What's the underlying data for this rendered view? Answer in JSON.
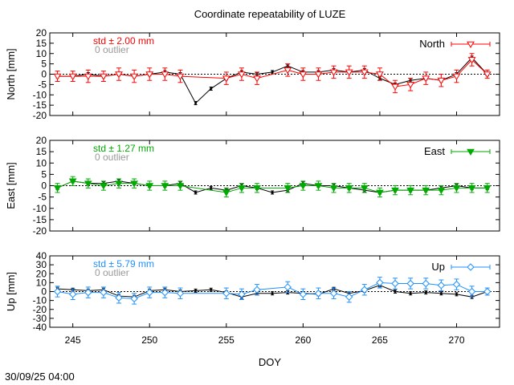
{
  "page": {
    "title": "Coordinate repeatability of LUZE",
    "timestamp": "30/09/25 04:00"
  },
  "chart_data": {
    "type": "line",
    "title": "Coordinate repeatability of LUZE",
    "xlabel": "DOY",
    "xlim": [
      243.5,
      272.8
    ],
    "xticks": [
      245,
      250,
      255,
      260,
      265,
      270
    ],
    "panels": [
      {
        "id": "north",
        "ylabel": "North [mm]",
        "ylim": [
          -20,
          20
        ],
        "yticks": [
          -20,
          -15,
          -10,
          -5,
          0,
          5,
          10,
          15,
          20
        ],
        "color": "#ff0000",
        "std_label": "std ± 2.00 mm",
        "outlier_label": "0 outlier",
        "legend": "North",
        "marker": "triangle-down-open",
        "raw": {
          "x": [
            244,
            245,
            246,
            247,
            248,
            249,
            250,
            251,
            252,
            253,
            254,
            255,
            256,
            257,
            258,
            259,
            260,
            261,
            262,
            263,
            264,
            265,
            266,
            267,
            268,
            269,
            270,
            271,
            272
          ],
          "y": [
            -1,
            -1,
            0,
            -1,
            0,
            -1,
            0,
            1,
            0,
            -14,
            -7,
            -2,
            1,
            0,
            1,
            4,
            1,
            1,
            2,
            1,
            2,
            -2,
            -5,
            -3,
            -2,
            -3,
            0,
            8,
            0
          ]
        },
        "filtered": {
          "x": [
            244,
            245,
            246,
            247,
            248,
            249,
            250,
            251,
            252,
            255,
            256,
            257,
            259,
            260,
            261,
            262,
            263,
            264,
            265,
            266,
            267,
            268,
            269,
            270,
            271,
            272
          ],
          "y": [
            -1,
            -1,
            -1,
            -1,
            0,
            -1,
            0,
            0,
            -1,
            -2,
            0,
            -2,
            2,
            0,
            0,
            1,
            1,
            1,
            0,
            -6,
            -5,
            -2,
            -3,
            -1,
            7,
            0
          ],
          "err": [
            2.5,
            2.5,
            3,
            2.5,
            3,
            3,
            3,
            3,
            3,
            3,
            3,
            3,
            3,
            3,
            3,
            3,
            3,
            3,
            3,
            3,
            3,
            3,
            3,
            3,
            3,
            2
          ]
        }
      },
      {
        "id": "east",
        "ylabel": "East [mm]",
        "ylim": [
          -20,
          20
        ],
        "yticks": [
          -20,
          -15,
          -10,
          -5,
          0,
          5,
          10,
          15,
          20
        ],
        "color": "#00aa00",
        "std_label": "std ± 1.27 mm",
        "outlier_label": "0 outlier",
        "legend": "East",
        "marker": "triangle-down-filled",
        "raw": {
          "x": [
            244,
            245,
            246,
            247,
            248,
            249,
            250,
            251,
            252,
            253,
            254,
            255,
            256,
            257,
            258,
            259,
            260,
            261,
            262,
            263,
            264,
            265,
            266,
            267,
            268,
            269,
            270,
            271,
            272
          ],
          "y": [
            -1,
            2,
            1,
            1,
            2,
            1,
            0,
            0,
            1,
            -3,
            -1,
            -2,
            0,
            -1,
            -3,
            -2,
            1,
            0,
            0,
            -1,
            -2,
            -3,
            -2,
            -2,
            -2,
            -1,
            0,
            -1,
            -1
          ]
        },
        "filtered": {
          "x": [
            244,
            245,
            246,
            247,
            248,
            249,
            250,
            251,
            252,
            255,
            256,
            257,
            259,
            260,
            261,
            262,
            263,
            264,
            265,
            266,
            267,
            268,
            269,
            270,
            271,
            272
          ],
          "y": [
            -1,
            2,
            1,
            0,
            1,
            1,
            0,
            0,
            0,
            -3,
            -1,
            -1,
            -1,
            0,
            0,
            -1,
            -1,
            -1,
            -3,
            -2,
            -2,
            -2,
            -2,
            -1,
            -1,
            -1
          ],
          "err": [
            2,
            2,
            2,
            2,
            2,
            2,
            2,
            2,
            2,
            2,
            2,
            2,
            2,
            2,
            2,
            2,
            2,
            2,
            2,
            2,
            2,
            2,
            2,
            2,
            2,
            2
          ]
        }
      },
      {
        "id": "up",
        "ylabel": "Up [mm]",
        "ylim": [
          -40,
          40
        ],
        "yticks": [
          -40,
          -30,
          -20,
          -10,
          0,
          10,
          20,
          30,
          40
        ],
        "yticklabels": [
          "-40",
          "-30",
          "-20",
          "-10",
          "0",
          "10",
          "20",
          "30",
          "40"
        ],
        "color": "#1e90ff",
        "std_label": "std ± 5.79 mm",
        "outlier_label": "0 outlier",
        "legend": "Up",
        "marker": "diamond-open",
        "raw": {
          "x": [
            244,
            245,
            246,
            247,
            248,
            249,
            250,
            251,
            252,
            253,
            254,
            255,
            256,
            257,
            258,
            259,
            260,
            261,
            262,
            263,
            264,
            265,
            266,
            267,
            268,
            269,
            270,
            271,
            272
          ],
          "y": [
            3,
            2,
            1,
            2,
            -5,
            -6,
            1,
            2,
            0,
            1,
            2,
            -1,
            -6,
            -2,
            -2,
            -1,
            -2,
            -3,
            3,
            -2,
            1,
            7,
            0,
            -2,
            -1,
            -2,
            -3,
            -6,
            0
          ]
        },
        "filtered": {
          "x": [
            244,
            245,
            246,
            247,
            248,
            249,
            250,
            251,
            252,
            255,
            256,
            257,
            259,
            260,
            261,
            262,
            263,
            264,
            265,
            266,
            267,
            268,
            269,
            270,
            271,
            272
          ],
          "y": [
            0,
            -3,
            -1,
            -1,
            -7,
            -8,
            -1,
            -1,
            -2,
            -2,
            -3,
            2,
            5,
            -3,
            -2,
            -2,
            -6,
            2,
            10,
            9,
            9,
            9,
            7,
            8,
            0,
            0
          ],
          "err": [
            6,
            6,
            6,
            6,
            6,
            6,
            6,
            6,
            6,
            6,
            6,
            6,
            6,
            6,
            6,
            6,
            6,
            6,
            6,
            6,
            6,
            6,
            6,
            6,
            6,
            4
          ]
        }
      }
    ]
  }
}
